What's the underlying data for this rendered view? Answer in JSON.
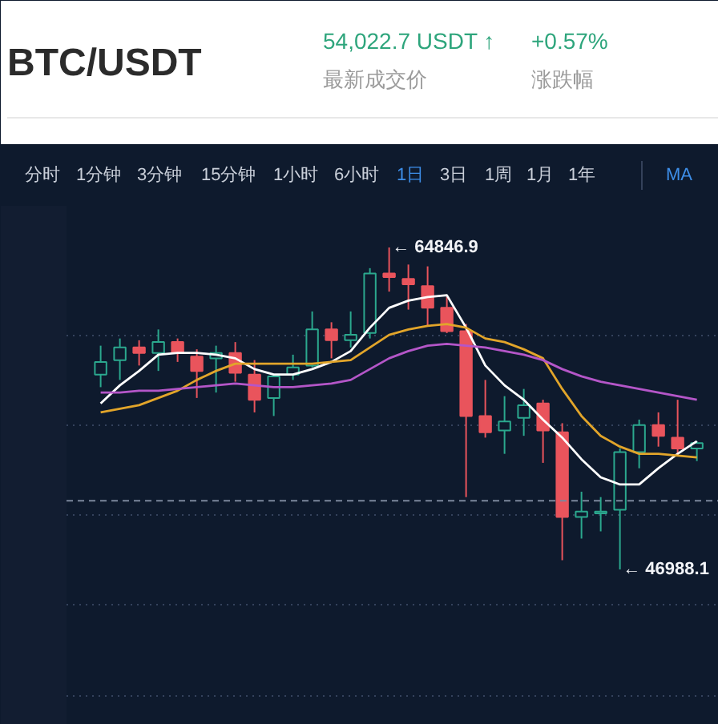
{
  "chart_data": {
    "type": "candlestick",
    "title": "BTC/USDT",
    "categories": [
      null,
      null,
      null,
      null,
      null,
      null,
      null,
      null,
      null,
      null,
      null,
      null,
      null,
      null,
      null,
      null,
      null,
      null,
      null,
      null,
      null,
      null,
      null,
      null,
      null,
      null,
      null,
      null,
      null,
      null,
      null,
      null
    ],
    "ohlc": [
      [
        57800,
        59400,
        57100,
        58500
      ],
      [
        58600,
        59800,
        57500,
        59300
      ],
      [
        59300,
        59700,
        58300,
        59000
      ],
      [
        59000,
        60300,
        58000,
        59600
      ],
      [
        59600,
        59800,
        58500,
        59000
      ],
      [
        58800,
        59200,
        56500,
        58000
      ],
      [
        58700,
        59400,
        56800,
        59000
      ],
      [
        59000,
        59600,
        57400,
        57900
      ],
      [
        57800,
        58600,
        55700,
        56400
      ],
      [
        56500,
        57800,
        55500,
        57700
      ],
      [
        57800,
        58900,
        57500,
        58200
      ],
      [
        58300,
        61300,
        58200,
        60300
      ],
      [
        60300,
        60700,
        58700,
        59700
      ],
      [
        59700,
        61300,
        59300,
        60000
      ],
      [
        60100,
        63700,
        59800,
        63400
      ],
      [
        63400,
        64846.9,
        62400,
        63200
      ],
      [
        63100,
        63900,
        61400,
        62800
      ],
      [
        62700,
        63800,
        60500,
        61500
      ],
      [
        61500,
        62100,
        60100,
        60200
      ],
      [
        60200,
        60600,
        51000,
        55500
      ],
      [
        55500,
        57500,
        54300,
        54600
      ],
      [
        54700,
        56600,
        53400,
        55200
      ],
      [
        55400,
        57000,
        54400,
        56100
      ],
      [
        56200,
        56400,
        52900,
        54700
      ],
      [
        54600,
        55100,
        47500,
        49900
      ],
      [
        49900,
        51300,
        48700,
        50200
      ],
      [
        50100,
        51000,
        49100,
        50200
      ],
      [
        50300,
        53700,
        46988.1,
        53500
      ],
      [
        53500,
        55300,
        52600,
        55000
      ],
      [
        55000,
        55700,
        53800,
        54400
      ],
      [
        54300,
        56400,
        53300,
        53700
      ],
      [
        53700,
        54100,
        53000,
        54000
      ]
    ],
    "colors": [
      "#2ba88e",
      "#2ba88e",
      "#e9545c",
      "#2ba88e",
      "#e9545c",
      "#e9545c",
      "#2ba88e",
      "#e9545c",
      "#e9545c",
      "#2ba88e",
      "#2ba88e",
      "#2ba88e",
      "#e9545c",
      "#2ba88e",
      "#2ba88e",
      "#e9545c",
      "#e9545c",
      "#e9545c",
      "#e9545c",
      "#e9545c",
      "#e9545c",
      "#2ba88e",
      "#2ba88e",
      "#e9545c",
      "#e9545c",
      "#2ba88e",
      "#2ba88e",
      "#2ba88e",
      "#2ba88e",
      "#e9545c",
      "#e9545c",
      "#2ba88e"
    ],
    "series": [
      {
        "type": "line",
        "color": "#ffffff",
        "values": [
          56200,
          57200,
          58000,
          58900,
          59000,
          59000,
          58900,
          58700,
          58100,
          57800,
          57800,
          58100,
          58500,
          59100,
          60400,
          61500,
          61900,
          62100,
          62200,
          60400,
          58300,
          57200,
          56400,
          55300,
          54300,
          53100,
          52100,
          51700,
          51700,
          52600,
          53400,
          54100
        ]
      },
      {
        "type": "line",
        "color": "#e2a52a",
        "values": [
          55700,
          55900,
          56100,
          56500,
          56900,
          57500,
          58000,
          58400,
          58400,
          58400,
          58400,
          58400,
          58500,
          58600,
          59300,
          60000,
          60300,
          60500,
          60600,
          60400,
          59800,
          59600,
          59200,
          58700,
          57000,
          55500,
          54400,
          53800,
          53400,
          53400,
          53300,
          53200
        ]
      },
      {
        "type": "line",
        "color": "#b456c8",
        "values": [
          56800,
          56800,
          56900,
          56900,
          57000,
          57100,
          57200,
          57300,
          57200,
          57100,
          57100,
          57200,
          57300,
          57500,
          58100,
          58700,
          59100,
          59400,
          59500,
          59400,
          59300,
          59100,
          58900,
          58600,
          58100,
          57700,
          57400,
          57200,
          57000,
          56800,
          56600,
          56400
        ]
      }
    ],
    "yticks": [
      {
        "value": 40000,
        "label": null
      },
      {
        "value": 45000,
        "label": null
      },
      {
        "value": 50000,
        "label": null
      },
      {
        "value": 55000,
        "label": null
      },
      {
        "value": 60000,
        "label": null
      }
    ],
    "grid": "y",
    "tick_labels": false,
    "ref_lines": [
      {
        "axis": "y",
        "value": 50800,
        "color": "#7b879c",
        "line_style": "dashed"
      }
    ],
    "annotations": [
      "54,022.7 USDT ↑",
      "+0.57%",
      "最新成交价",
      "涨跌幅",
      "分时",
      "1分钟",
      "3分钟",
      "15分钟",
      "1小时",
      "6小时",
      "1日",
      "3日",
      "1周",
      "1月",
      "1年",
      "MA",
      "← 64846.9",
      "← 46988.1"
    ]
  }
}
